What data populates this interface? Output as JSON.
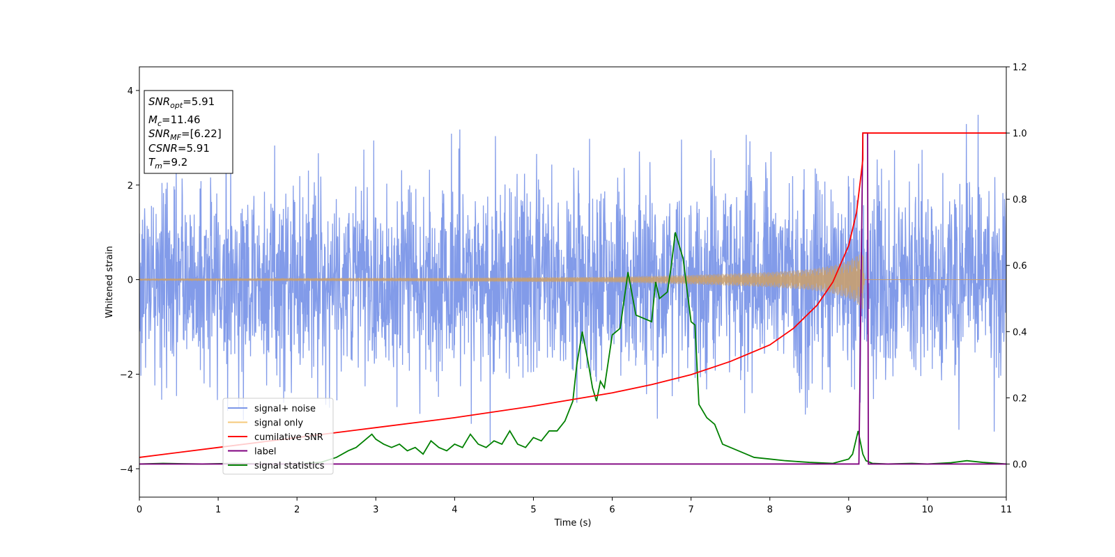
{
  "chart_data": {
    "type": "line",
    "xlabel": "Time (s)",
    "ylabel": "Whitened strain",
    "xlim": [
      0,
      11
    ],
    "ylim_left": [
      -4.6,
      4.5
    ],
    "ylim_right": [
      -0.1,
      1.2
    ],
    "x_ticks": [
      0,
      1,
      2,
      3,
      4,
      5,
      6,
      7,
      8,
      9,
      10,
      11
    ],
    "y_ticks_left": [
      -4,
      -2,
      0,
      2,
      4
    ],
    "y_ticks_right": [
      0.0,
      0.2,
      0.4,
      0.6,
      0.8,
      1.0,
      1.2
    ],
    "y_tick_labels_right": [
      "0.0",
      "0.2",
      "0.4",
      "0.6",
      "0.8",
      "1.0",
      "1.2"
    ],
    "info_box": {
      "lines": [
        {
          "base": "SNR",
          "sub": "opt",
          "rest": "=5.91"
        },
        {
          "base": "M",
          "sub": "c",
          "rest": "=11.46"
        },
        {
          "base": "SNR",
          "sub": "MF",
          "rest": "=[6.22]"
        },
        {
          "base": "CSNR",
          "sub": "",
          "rest": "=5.91"
        },
        {
          "base": "T",
          "sub": "m",
          "rest": "=9.2"
        }
      ]
    },
    "legend": {
      "position": "lower-left",
      "entries": [
        {
          "label": "signal+ noise",
          "color": "#7b96e8"
        },
        {
          "label": "signal only",
          "color": "#f5c97a"
        },
        {
          "label": "cumilative SNR",
          "color": "#ff0000"
        },
        {
          "label": "label",
          "color": "#7f007f"
        },
        {
          "label": "signal statistics",
          "color": "#008000"
        }
      ]
    },
    "series": [
      {
        "name": "signal+ noise",
        "axis": "left",
        "color": "#7b96e8",
        "description_values": {
          "noise_std": 1.0,
          "max": 4.07,
          "min": -4.15
        }
      },
      {
        "name": "signal only",
        "axis": "left",
        "color": "#c8a070",
        "envelope": {
          "x": [
            0,
            2,
            4,
            6,
            7,
            8,
            8.5,
            8.8,
            9.0,
            9.1,
            9.18,
            9.2
          ],
          "amp": [
            0.02,
            0.03,
            0.04,
            0.06,
            0.1,
            0.16,
            0.22,
            0.3,
            0.4,
            0.5,
            0.62,
            0.0
          ]
        }
      },
      {
        "name": "cumilative SNR",
        "axis": "right",
        "color": "#ff0000",
        "x": [
          0,
          1,
          2,
          3,
          4,
          5,
          6,
          6.5,
          7,
          7.5,
          8,
          8.3,
          8.6,
          8.8,
          9.0,
          9.1,
          9.18,
          9.18,
          11
        ],
        "values": [
          0.02,
          0.05,
          0.08,
          0.11,
          0.14,
          0.175,
          0.215,
          0.24,
          0.27,
          0.31,
          0.36,
          0.41,
          0.48,
          0.55,
          0.66,
          0.76,
          0.92,
          1.0,
          1.0
        ]
      },
      {
        "name": "label",
        "axis": "right",
        "color": "#7f007f",
        "x": [
          0,
          9.13,
          9.18,
          9.24,
          9.25,
          11
        ],
        "values": [
          0.0,
          0.0,
          1.0,
          1.0,
          0.0,
          0.0
        ]
      },
      {
        "name": "signal statistics",
        "axis": "right",
        "color": "#008000",
        "x": [
          0,
          0.3,
          0.8,
          1.2,
          1.6,
          2.0,
          2.3,
          2.5,
          2.65,
          2.75,
          2.85,
          2.95,
          3.0,
          3.1,
          3.2,
          3.3,
          3.4,
          3.5,
          3.6,
          3.7,
          3.8,
          3.9,
          4.0,
          4.1,
          4.2,
          4.3,
          4.4,
          4.5,
          4.6,
          4.7,
          4.8,
          4.9,
          5.0,
          5.1,
          5.2,
          5.3,
          5.4,
          5.5,
          5.55,
          5.62,
          5.7,
          5.75,
          5.8,
          5.85,
          5.9,
          6.0,
          6.1,
          6.2,
          6.3,
          6.4,
          6.5,
          6.55,
          6.6,
          6.7,
          6.75,
          6.8,
          6.9,
          7.0,
          7.05,
          7.1,
          7.2,
          7.3,
          7.4,
          7.5,
          7.6,
          7.7,
          7.8,
          8.0,
          8.2,
          8.5,
          8.8,
          9.0,
          9.05,
          9.12,
          9.18,
          9.22,
          9.3,
          9.5,
          9.8,
          10.0,
          10.3,
          10.5,
          10.7,
          11.0
        ],
        "values": [
          0.0,
          0.002,
          0.0,
          0.002,
          0.0,
          0.0,
          0.005,
          0.02,
          0.04,
          0.05,
          0.07,
          0.09,
          0.075,
          0.06,
          0.05,
          0.06,
          0.04,
          0.05,
          0.03,
          0.07,
          0.05,
          0.04,
          0.06,
          0.05,
          0.09,
          0.06,
          0.05,
          0.07,
          0.06,
          0.1,
          0.06,
          0.05,
          0.08,
          0.07,
          0.1,
          0.1,
          0.13,
          0.19,
          0.3,
          0.4,
          0.3,
          0.23,
          0.19,
          0.25,
          0.23,
          0.39,
          0.41,
          0.58,
          0.45,
          0.44,
          0.43,
          0.55,
          0.5,
          0.52,
          0.6,
          0.7,
          0.62,
          0.43,
          0.42,
          0.18,
          0.14,
          0.12,
          0.06,
          0.05,
          0.04,
          0.03,
          0.02,
          0.015,
          0.01,
          0.005,
          0.002,
          0.015,
          0.03,
          0.1,
          0.03,
          0.01,
          0.002,
          0.0,
          0.002,
          0.0,
          0.004,
          0.01,
          0.005,
          0.0
        ]
      }
    ]
  }
}
